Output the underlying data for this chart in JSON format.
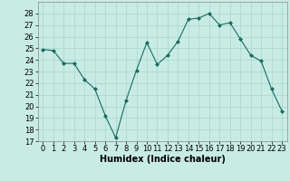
{
  "x": [
    0,
    1,
    2,
    3,
    4,
    5,
    6,
    7,
    8,
    9,
    10,
    11,
    12,
    13,
    14,
    15,
    16,
    17,
    18,
    19,
    20,
    21,
    22,
    23
  ],
  "y": [
    24.9,
    24.8,
    23.7,
    23.7,
    22.3,
    21.5,
    19.2,
    17.3,
    20.5,
    23.1,
    25.5,
    23.6,
    24.4,
    25.6,
    27.5,
    27.6,
    28.0,
    27.0,
    27.2,
    25.8,
    24.4,
    23.9,
    21.5,
    19.6
  ],
  "line_color": "#1a6b5e",
  "marker": "D",
  "marker_size": 2.0,
  "bg_color": "#c8ece4",
  "grid_color": "#a8d4cc",
  "xlabel": "Humidex (Indice chaleur)",
  "ylim": [
    17,
    29
  ],
  "xlim": [
    -0.5,
    23.5
  ],
  "yticks": [
    17,
    18,
    19,
    20,
    21,
    22,
    23,
    24,
    25,
    26,
    27,
    28
  ],
  "xticks": [
    0,
    1,
    2,
    3,
    4,
    5,
    6,
    7,
    8,
    9,
    10,
    11,
    12,
    13,
    14,
    15,
    16,
    17,
    18,
    19,
    20,
    21,
    22,
    23
  ],
  "xlabel_fontsize": 7,
  "tick_fontsize": 6
}
